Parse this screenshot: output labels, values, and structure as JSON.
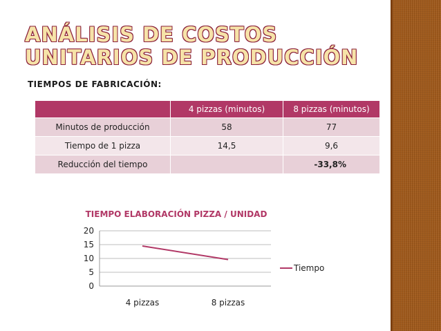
{
  "slide": {
    "title": "ANÁLISIS DE COSTOS UNITARIOS DE PRODUCCIÓN",
    "subtitle": "TIEMPOS DE FABRICACIÓN:"
  },
  "table": {
    "headers": [
      "",
      "4 pizzas (minutos)",
      "8 pizzas (minutos)"
    ],
    "rows": [
      [
        "Minutos de producción",
        "58",
        "77"
      ],
      [
        "Tiempo de 1 pizza",
        "14,5",
        "9,6"
      ],
      [
        "Reducción del tiempo",
        "",
        "-33,8%"
      ]
    ]
  },
  "colors": {
    "accent": "#b13866",
    "title_fill": "#f6e3a8",
    "sidebar": "#a05a1c",
    "series": "#b13866"
  },
  "chart_data": {
    "type": "line",
    "title": "TIEMPO ELABORACIÓN PIZZA / UNIDAD",
    "categories": [
      "4 pizzas",
      "8 pizzas"
    ],
    "series": [
      {
        "name": "Tiempo",
        "values": [
          14.5,
          9.6
        ]
      }
    ],
    "ylim": [
      0,
      20
    ],
    "yticks": [
      "0",
      "5",
      "10",
      "15",
      "20"
    ],
    "grid": true,
    "legend": "right"
  }
}
